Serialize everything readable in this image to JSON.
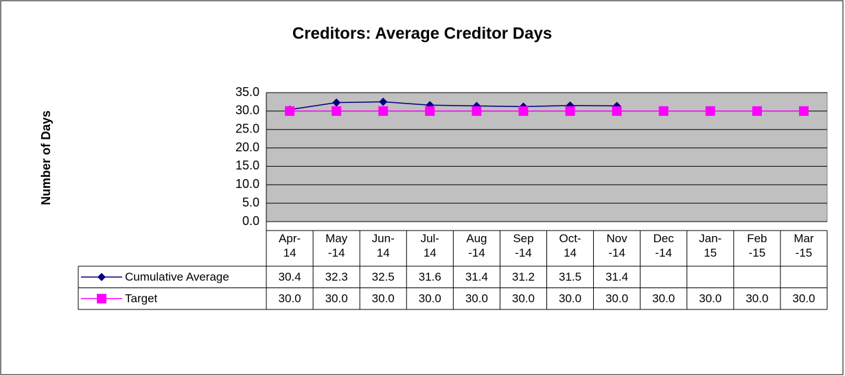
{
  "chart_data": {
    "type": "line",
    "title": "Creditors: Average Creditor Days",
    "y_label": "Number of Days",
    "categories": [
      "Apr-14",
      "May-14",
      "Jun-14",
      "Jul-14",
      "Aug-14",
      "Sep-14",
      "Oct-14",
      "Nov-14",
      "Dec-14",
      "Jan-15",
      "Feb-15",
      "Mar-15"
    ],
    "series": [
      {
        "name": "Cumulative Average",
        "color": "#000080",
        "marker": "diamond",
        "values": [
          30.4,
          32.3,
          32.5,
          31.6,
          31.4,
          31.2,
          31.5,
          31.4,
          null,
          null,
          null,
          null
        ],
        "value_labels": [
          "30.4",
          "32.3",
          "32.5",
          "31.6",
          "31.4",
          "31.2",
          "31.5",
          "31.4",
          null,
          null,
          null,
          null
        ]
      },
      {
        "name": "Target",
        "color": "#ff00ff",
        "marker": "square",
        "values": [
          30,
          30,
          30,
          30,
          30,
          30,
          30,
          30,
          30,
          30,
          30,
          30
        ],
        "value_labels": [
          "30.0",
          "30.0",
          "30.0",
          "30.0",
          "30.0",
          "30.0",
          "30.0",
          "30.0",
          "30.0",
          "30.0",
          "30.0",
          "30.0"
        ]
      }
    ],
    "ylim": [
      0,
      35
    ],
    "yticks": [
      {
        "value": 0,
        "label": "0.0"
      },
      {
        "value": 5,
        "label": "5.0"
      },
      {
        "value": 10,
        "label": "10.0"
      },
      {
        "value": 15,
        "label": "15.0"
      },
      {
        "value": 20,
        "label": "20.0"
      },
      {
        "value": 25,
        "label": "25.0"
      },
      {
        "value": 30,
        "label": "30.0"
      },
      {
        "value": 35,
        "label": "35.0"
      }
    ],
    "grid": true,
    "plot_background": "#c0c0c0"
  }
}
